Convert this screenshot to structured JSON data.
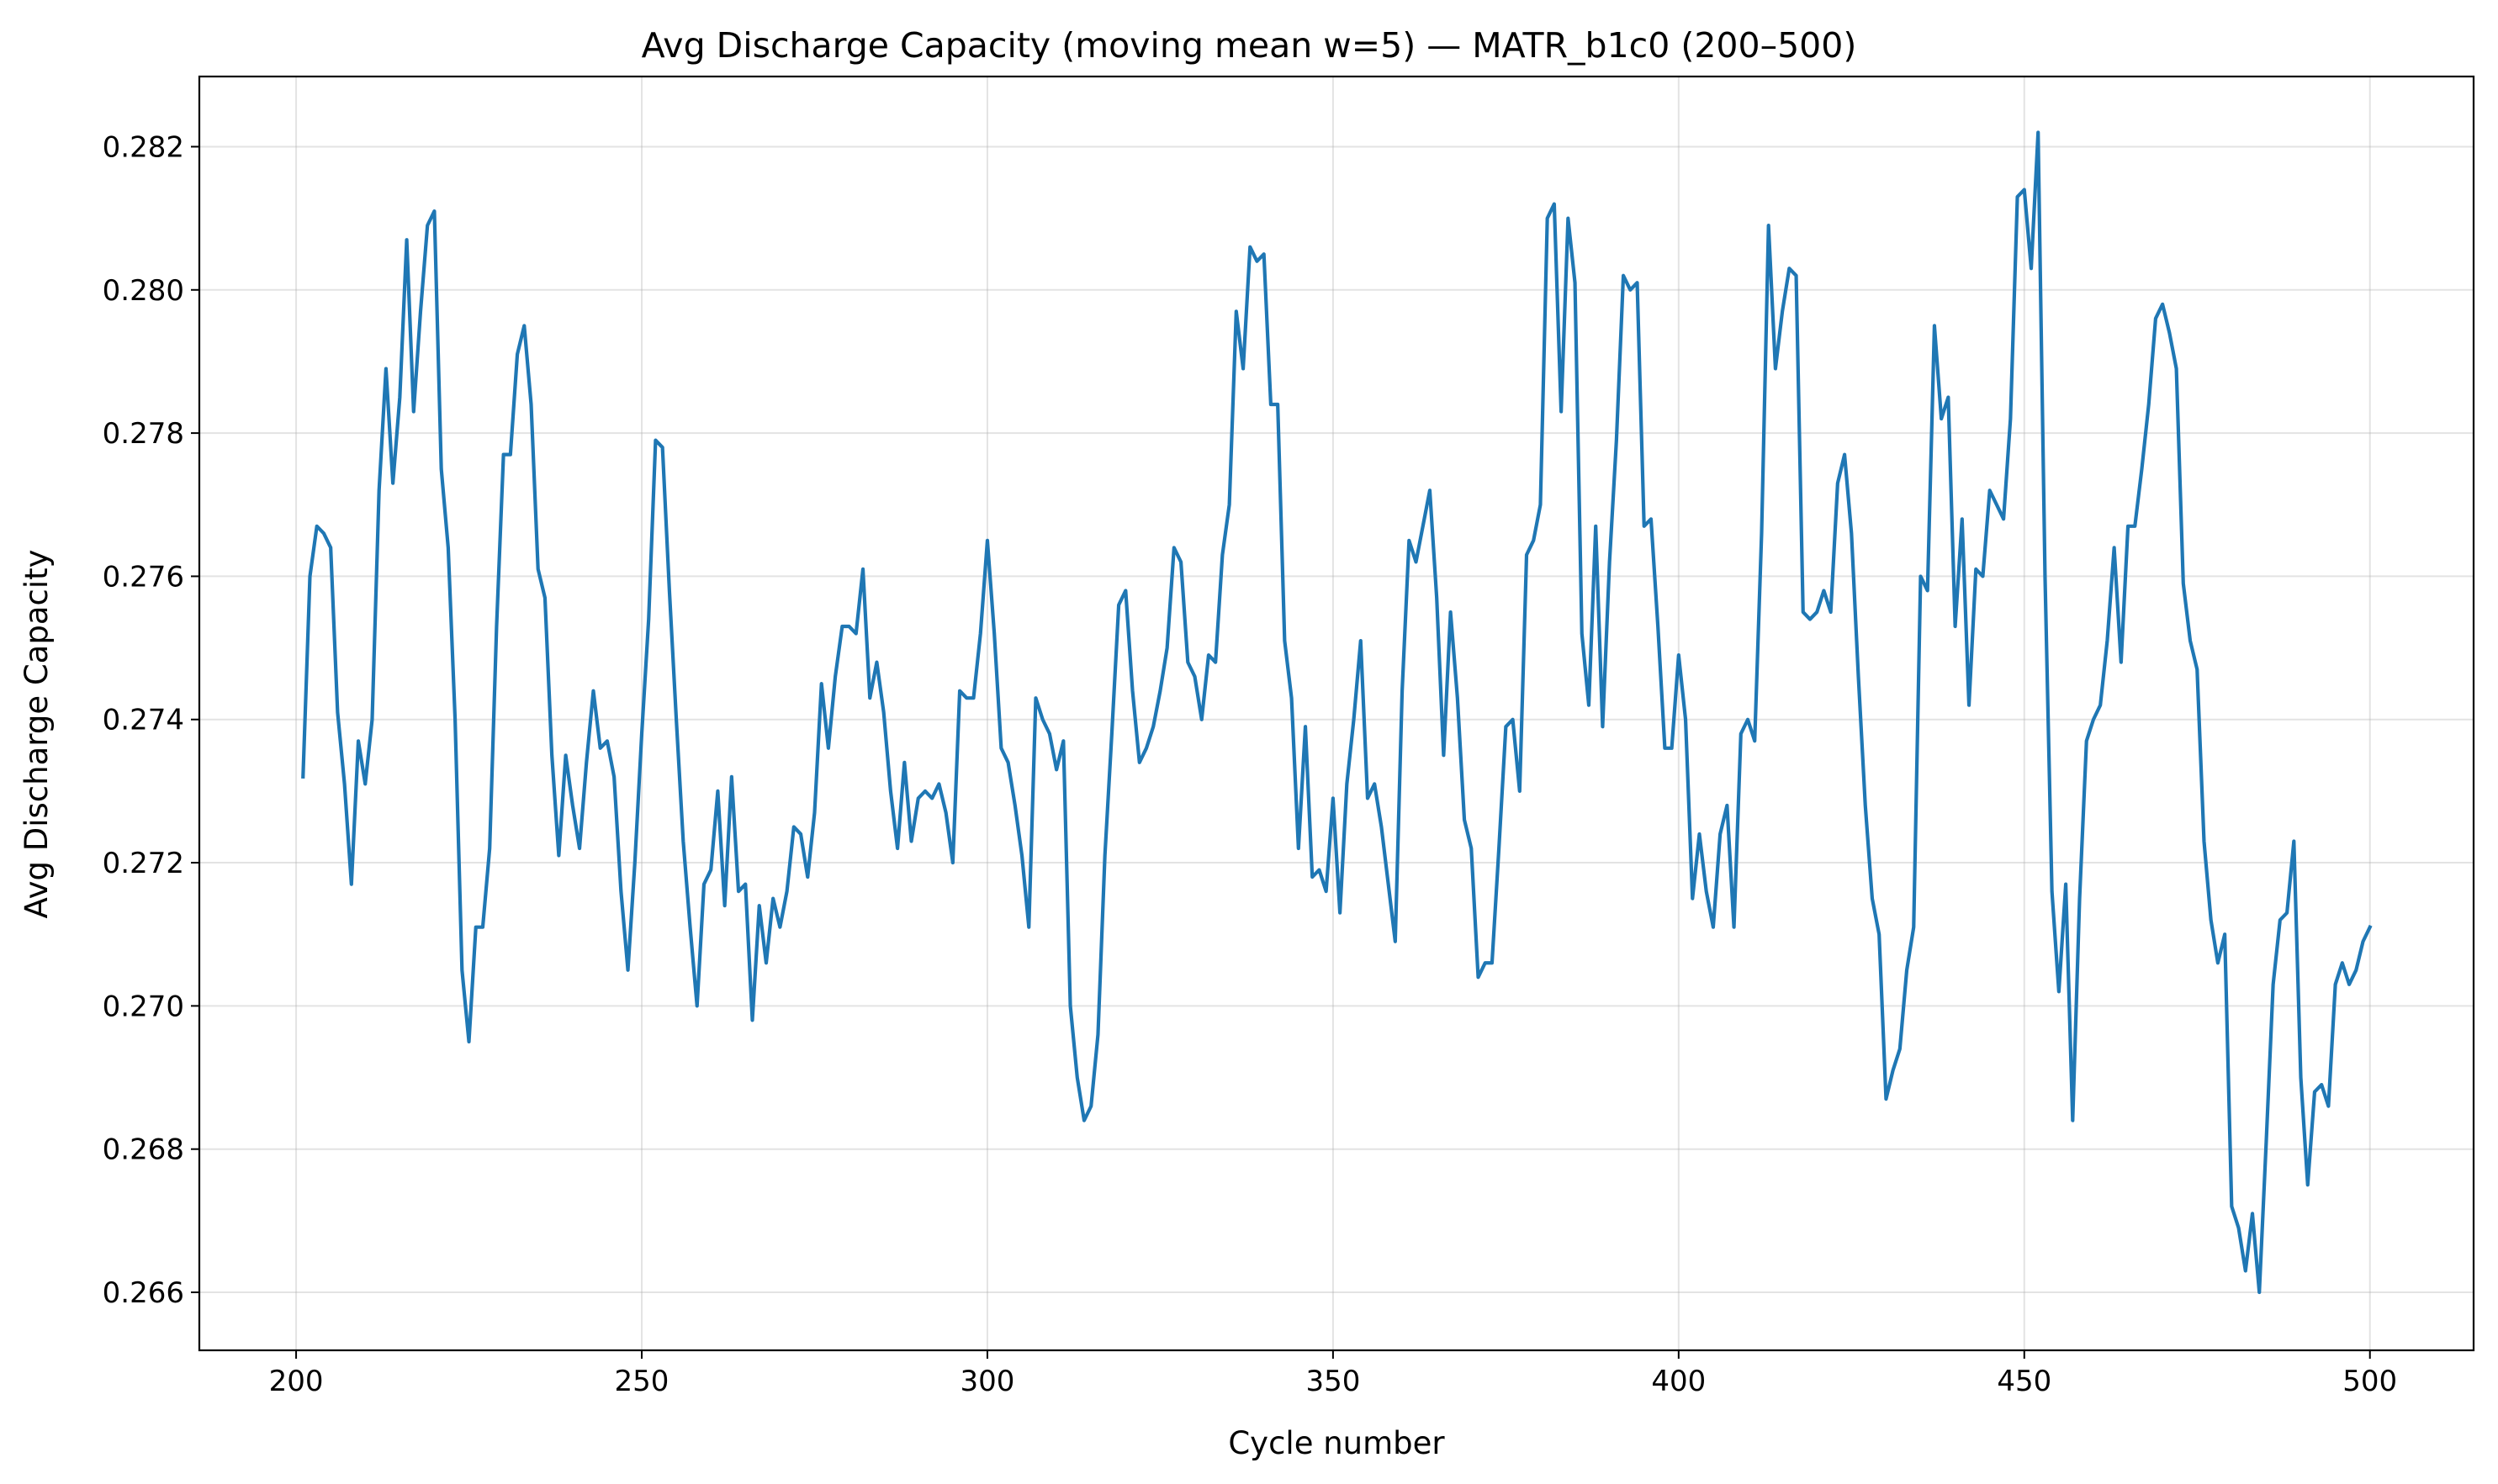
{
  "chart_data": {
    "type": "line",
    "title": "Avg Discharge Capacity (moving mean w=5) — MATR_b1c0 (200–500)",
    "xlabel": "Cycle number",
    "ylabel": "Avg Discharge Capacity",
    "xlim": [
      186,
      515
    ],
    "ylim": [
      0.26519,
      0.28298
    ],
    "xticks": [
      200,
      250,
      300,
      350,
      400,
      450,
      500
    ],
    "yticks": [
      0.266,
      0.268,
      0.27,
      0.272,
      0.274,
      0.276,
      0.278,
      0.28,
      0.282
    ],
    "grid": true,
    "legend": "none",
    "series": [
      {
        "color": "#1f77b4",
        "x_start": 201,
        "x_step": 1,
        "values": [
          0.2732,
          0.276,
          0.2767,
          0.2766,
          0.2764,
          0.2741,
          0.2731,
          0.2717,
          0.2737,
          0.2731,
          0.274,
          0.2772,
          0.2789,
          0.2773,
          0.2785,
          0.2807,
          0.2783,
          0.2797,
          0.2809,
          0.2811,
          0.2775,
          0.2764,
          0.274,
          0.2705,
          0.2695,
          0.2711,
          0.2711,
          0.2722,
          0.2753,
          0.2777,
          0.2777,
          0.2791,
          0.2795,
          0.2784,
          0.2761,
          0.2757,
          0.2735,
          0.2721,
          0.2735,
          0.2728,
          0.2722,
          0.2734,
          0.2744,
          0.2736,
          0.2737,
          0.2732,
          0.2716,
          0.2705,
          0.272,
          0.2738,
          0.2754,
          0.2779,
          0.2778,
          0.2758,
          0.274,
          0.2723,
          0.2711,
          0.27,
          0.2717,
          0.2719,
          0.273,
          0.2714,
          0.2732,
          0.2716,
          0.2717,
          0.2698,
          0.2714,
          0.2706,
          0.2715,
          0.2711,
          0.2716,
          0.2725,
          0.2724,
          0.2718,
          0.2727,
          0.2745,
          0.2736,
          0.2746,
          0.2753,
          0.2753,
          0.2752,
          0.2761,
          0.2743,
          0.2748,
          0.2741,
          0.273,
          0.2722,
          0.2734,
          0.2723,
          0.2729,
          0.273,
          0.2729,
          0.2731,
          0.2727,
          0.272,
          0.2744,
          0.2743,
          0.2743,
          0.2752,
          0.2765,
          0.2752,
          0.2736,
          0.2734,
          0.2728,
          0.2721,
          0.2711,
          0.2743,
          0.274,
          0.2738,
          0.2733,
          0.2737,
          0.27,
          0.269,
          0.2684,
          0.2686,
          0.2696,
          0.2721,
          0.2738,
          0.2756,
          0.2758,
          0.2744,
          0.2734,
          0.2736,
          0.2739,
          0.2744,
          0.275,
          0.2764,
          0.2762,
          0.2748,
          0.2746,
          0.274,
          0.2749,
          0.2748,
          0.2763,
          0.277,
          0.2797,
          0.2789,
          0.2806,
          0.2804,
          0.2805,
          0.2784,
          0.2784,
          0.2751,
          0.2743,
          0.2722,
          0.2739,
          0.2718,
          0.2719,
          0.2716,
          0.2729,
          0.2713,
          0.2731,
          0.274,
          0.2751,
          0.2729,
          0.2731,
          0.2725,
          0.2717,
          0.2709,
          0.2744,
          0.2765,
          0.2762,
          0.2767,
          0.2772,
          0.2757,
          0.2735,
          0.2755,
          0.2743,
          0.2726,
          0.2722,
          0.2704,
          0.2706,
          0.2706,
          0.2722,
          0.2739,
          0.274,
          0.273,
          0.2763,
          0.2765,
          0.277,
          0.281,
          0.2812,
          0.2783,
          0.281,
          0.2801,
          0.2752,
          0.2742,
          0.2767,
          0.2739,
          0.2762,
          0.2779,
          0.2802,
          0.28,
          0.2801,
          0.2767,
          0.2768,
          0.2753,
          0.2736,
          0.2736,
          0.2749,
          0.274,
          0.2715,
          0.2724,
          0.2716,
          0.2711,
          0.2724,
          0.2728,
          0.2711,
          0.2738,
          0.274,
          0.2737,
          0.2766,
          0.2809,
          0.2789,
          0.2797,
          0.2803,
          0.2802,
          0.2755,
          0.2754,
          0.2755,
          0.2758,
          0.2755,
          0.2773,
          0.2777,
          0.2766,
          0.2746,
          0.2728,
          0.2715,
          0.271,
          0.2687,
          0.2691,
          0.2694,
          0.2705,
          0.2711,
          0.276,
          0.2758,
          0.2795,
          0.2782,
          0.2785,
          0.2753,
          0.2768,
          0.2742,
          0.2761,
          0.276,
          0.2772,
          0.277,
          0.2768,
          0.2782,
          0.2813,
          0.2814,
          0.2803,
          0.2822,
          0.276,
          0.2716,
          0.2702,
          0.2717,
          0.2684,
          0.2715,
          0.2737,
          0.274,
          0.2742,
          0.2751,
          0.2764,
          0.2748,
          0.2767,
          0.2767,
          0.2775,
          0.2784,
          0.2796,
          0.2798,
          0.2794,
          0.2789,
          0.2759,
          0.2751,
          0.2747,
          0.2723,
          0.2712,
          0.2706,
          0.271,
          0.2672,
          0.2669,
          0.2663,
          0.2671,
          0.266,
          0.2681,
          0.2703,
          0.2712,
          0.2713,
          0.2723,
          0.269,
          0.2675,
          0.2688,
          0.2689,
          0.2686,
          0.2703,
          0.2706,
          0.2703,
          0.2705,
          0.2709,
          0.2711
        ]
      }
    ]
  }
}
